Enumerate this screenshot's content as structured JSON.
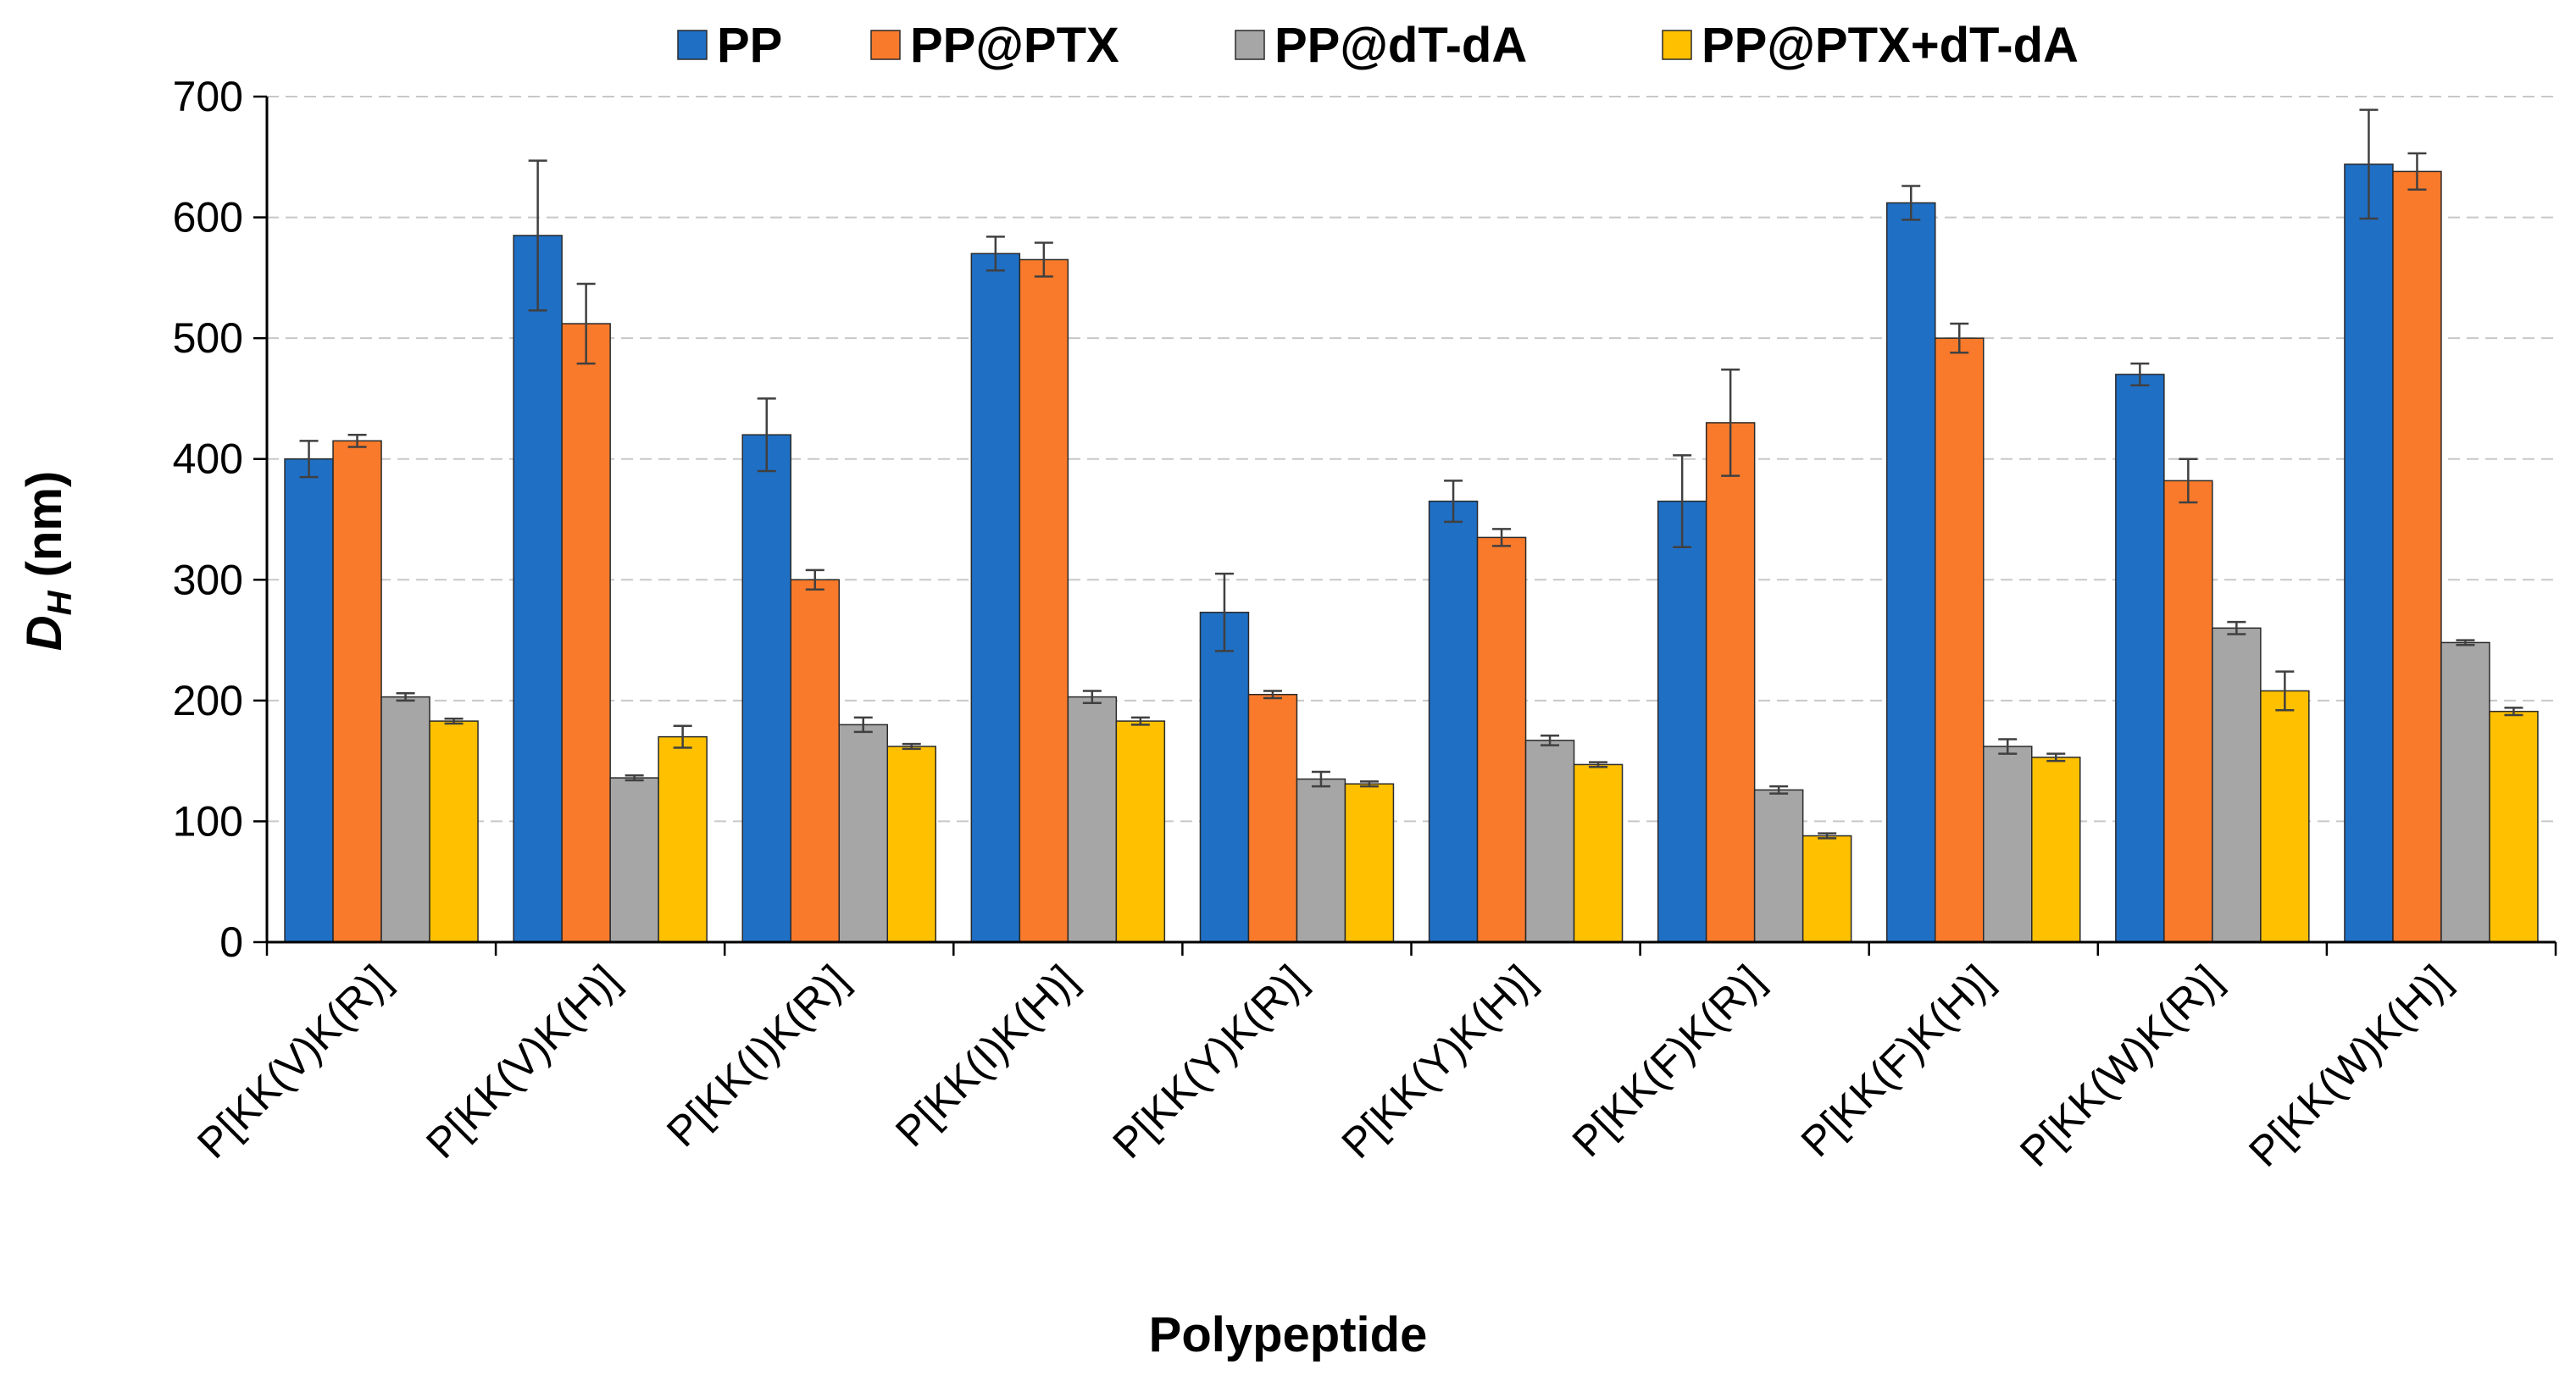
{
  "chart_data": {
    "type": "bar",
    "title": "",
    "xlabel": "Polypeptide",
    "ylabel_main": "D",
    "ylabel_sub": "H",
    "ylabel_unit": " (nm)",
    "ylim": [
      0,
      700
    ],
    "yticks": [
      "0",
      "100",
      "200",
      "300",
      "400",
      "500",
      "600",
      "700"
    ],
    "grid": true,
    "legend_position": "top",
    "categories": [
      "P[KK(V)K(R)]",
      "P[KK(V)K(H)]",
      "P[KK(I)K(R)]",
      "P[KK(I)K(H)]",
      "P[KK(Y)K(R)]",
      "P[KK(Y)K(H)]",
      "P[KK(F)K(R)]",
      "P[KK(F)K(H)]",
      "P[KK(W)K(R)]",
      "P[KK(W)K(H)]"
    ],
    "series": [
      {
        "name": "PP",
        "color": "#1f6fc5",
        "values": [
          400,
          585,
          420,
          570,
          273,
          365,
          365,
          612,
          470,
          644
        ],
        "errors": [
          15,
          62,
          30,
          14,
          32,
          17,
          38,
          14,
          9,
          45
        ]
      },
      {
        "name": "PP@PTX",
        "color": "#f97a2b",
        "values": [
          415,
          512,
          300,
          565,
          205,
          335,
          430,
          500,
          382,
          638
        ],
        "errors": [
          5,
          33,
          8,
          14,
          3,
          7,
          44,
          12,
          18,
          15
        ]
      },
      {
        "name": "PP@dT-dA",
        "color": "#a6a6a6",
        "values": [
          203,
          136,
          180,
          203,
          135,
          167,
          126,
          162,
          260,
          248
        ],
        "errors": [
          3,
          2,
          6,
          5,
          6,
          4,
          3,
          6,
          5,
          2
        ]
      },
      {
        "name": "PP@PTX+dT-dA",
        "color": "#ffc000",
        "values": [
          183,
          170,
          162,
          183,
          131,
          147,
          88,
          153,
          208,
          191
        ],
        "errors": [
          2,
          9,
          2,
          3,
          2,
          2,
          2,
          3,
          16,
          3
        ]
      }
    ]
  }
}
